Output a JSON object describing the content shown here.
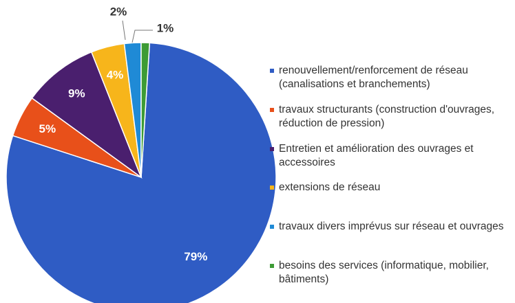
{
  "chart_data": {
    "type": "pie",
    "categories": [
      "renouvellement/renforcement de réseau (canalisations et branchements)",
      "travaux structurants (construction d'ouvrages, réduction de pression)",
      "Entretien et amélioration des ouvrages et accessoires",
      "extensions de réseau",
      "travaux divers imprévus sur réseau et ouvrages",
      "besoins des services (informatique, mobilier, bâtiments)"
    ],
    "values": [
      79,
      5,
      9,
      4,
      2,
      1
    ],
    "value_labels": [
      "79%",
      "5%",
      "9%",
      "4%",
      "2%",
      "1%"
    ],
    "colors": [
      "#2f5cc4",
      "#e8501a",
      "#4a1f6e",
      "#f7b51b",
      "#1f8ad6",
      "#3d9b35"
    ],
    "legend": "right"
  }
}
